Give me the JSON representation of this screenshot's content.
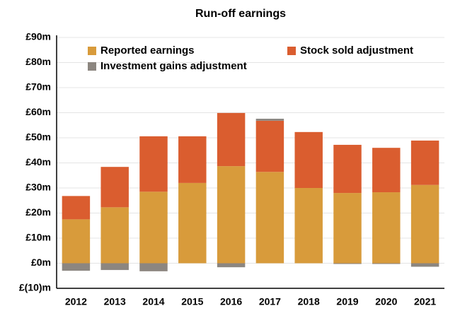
{
  "chart_data": {
    "type": "stacked_bar",
    "title": "Run-off earnings",
    "categories": [
      "2012",
      "2013",
      "2014",
      "2015",
      "2016",
      "2017",
      "2018",
      "2019",
      "2020",
      "2021"
    ],
    "series": [
      {
        "name": "Reported earnings",
        "color": "#d89b3b",
        "values": [
          17.5,
          22.3,
          28.5,
          32,
          38.7,
          36.4,
          30,
          28,
          28.3,
          31.2
        ]
      },
      {
        "name": "Stock sold adjustment",
        "color": "#da5d2f",
        "values": [
          9.3,
          16.1,
          22.1,
          18.6,
          21.2,
          20.4,
          22.3,
          19.2,
          17.7,
          17.7
        ]
      },
      {
        "name": "Investment gains adjustment",
        "color": "#8c8680",
        "values": [
          -3,
          -2.7,
          -3.2,
          0,
          -1.6,
          0.8,
          0,
          -0.3,
          -0.3,
          -1.4
        ]
      }
    ],
    "ylim": [
      -10,
      90
    ],
    "yticks": [
      {
        "value": -10,
        "label": "£(10)m"
      },
      {
        "value": 0,
        "label": "£0m"
      },
      {
        "value": 10,
        "label": "£10m"
      },
      {
        "value": 20,
        "label": "£20m"
      },
      {
        "value": 30,
        "label": "£30m"
      },
      {
        "value": 40,
        "label": "£40m"
      },
      {
        "value": 50,
        "label": "£50m"
      },
      {
        "value": 60,
        "label": "£60m"
      },
      {
        "value": 70,
        "label": "£70m"
      },
      {
        "value": 80,
        "label": "£80m"
      },
      {
        "value": 90,
        "label": "£90m"
      }
    ],
    "grid": true
  }
}
